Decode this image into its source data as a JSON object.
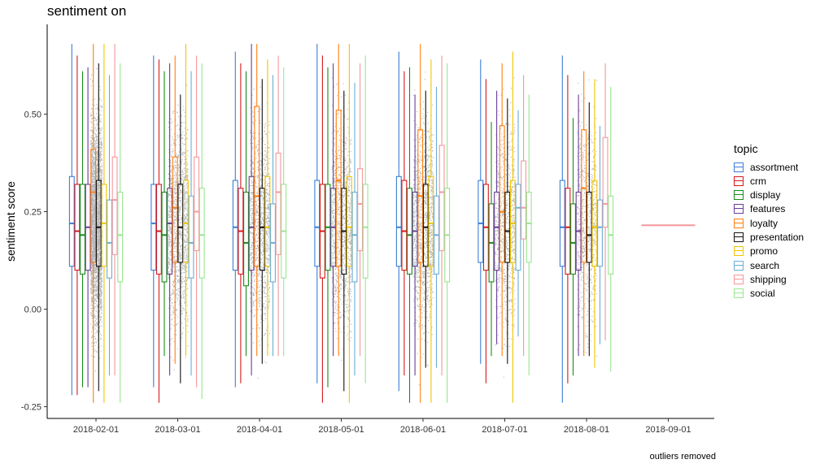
{
  "chart_data": {
    "type": "box",
    "title": "sentiment on",
    "caption": "outliers removed",
    "xlabel": "",
    "ylabel": "sentiment score",
    "ylim": [
      -0.28,
      0.73
    ],
    "y_ticks": [
      "-0.25",
      "0.00",
      "0.25",
      "0.50"
    ],
    "categories": [
      "2018-02-01",
      "2018-03-01",
      "2018-04-01",
      "2018-05-01",
      "2018-06-01",
      "2018-07-01",
      "2018-08-01",
      "2018-09-01"
    ],
    "legend": {
      "title": "topic",
      "position": "right"
    },
    "series": [
      {
        "name": "assortment",
        "color": "#3a7fd5",
        "boxes": [
          {
            "x": "2018-02-01",
            "min": -0.22,
            "q1": 0.11,
            "median": 0.22,
            "q3": 0.34,
            "max": 0.68
          },
          {
            "x": "2018-03-01",
            "min": -0.2,
            "q1": 0.1,
            "median": 0.22,
            "q3": 0.32,
            "max": 0.65
          },
          {
            "x": "2018-04-01",
            "min": -0.2,
            "q1": 0.1,
            "median": 0.21,
            "q3": 0.33,
            "max": 0.66
          },
          {
            "x": "2018-05-01",
            "min": -0.19,
            "q1": 0.11,
            "median": 0.21,
            "q3": 0.33,
            "max": 0.68
          },
          {
            "x": "2018-06-01",
            "min": -0.21,
            "q1": 0.11,
            "median": 0.21,
            "q3": 0.34,
            "max": 0.66
          },
          {
            "x": "2018-07-01",
            "min": -0.14,
            "q1": 0.12,
            "median": 0.22,
            "q3": 0.33,
            "max": 0.64
          },
          {
            "x": "2018-08-01",
            "min": -0.24,
            "q1": 0.11,
            "median": 0.21,
            "q3": 0.33,
            "max": 0.65
          }
        ]
      },
      {
        "name": "crm",
        "color": "#d7191c",
        "boxes": [
          {
            "x": "2018-02-01",
            "min": -0.22,
            "q1": 0.1,
            "median": 0.2,
            "q3": 0.32,
            "max": 0.65
          },
          {
            "x": "2018-03-01",
            "min": -0.24,
            "q1": 0.09,
            "median": 0.2,
            "q3": 0.32,
            "max": 0.64
          },
          {
            "x": "2018-04-01",
            "min": -0.19,
            "q1": 0.09,
            "median": 0.2,
            "q3": 0.31,
            "max": 0.63
          },
          {
            "x": "2018-05-01",
            "min": -0.24,
            "q1": 0.08,
            "median": 0.2,
            "q3": 0.32,
            "max": 0.65
          },
          {
            "x": "2018-06-01",
            "min": -0.17,
            "q1": 0.1,
            "median": 0.2,
            "q3": 0.33,
            "max": 0.61
          },
          {
            "x": "2018-07-01",
            "min": -0.19,
            "q1": 0.1,
            "median": 0.21,
            "q3": 0.32,
            "max": 0.59
          },
          {
            "x": "2018-08-01",
            "min": -0.19,
            "q1": 0.09,
            "median": 0.21,
            "q3": 0.31,
            "max": 0.6
          }
        ]
      },
      {
        "name": "display",
        "color": "#1a8b1a",
        "boxes": [
          {
            "x": "2018-02-01",
            "min": -0.2,
            "q1": 0.09,
            "median": 0.19,
            "q3": 0.32,
            "max": 0.61
          },
          {
            "x": "2018-03-01",
            "min": -0.12,
            "q1": 0.07,
            "median": 0.19,
            "q3": 0.3,
            "max": 0.61
          },
          {
            "x": "2018-04-01",
            "min": -0.12,
            "q1": 0.06,
            "median": 0.17,
            "q3": 0.3,
            "max": 0.61
          },
          {
            "x": "2018-05-01",
            "min": -0.2,
            "q1": 0.1,
            "median": 0.21,
            "q3": 0.32,
            "max": 0.62
          },
          {
            "x": "2018-06-01",
            "min": -0.24,
            "q1": 0.09,
            "median": 0.19,
            "q3": 0.31,
            "max": 0.62
          },
          {
            "x": "2018-07-01",
            "min": -0.12,
            "q1": 0.07,
            "median": 0.17,
            "q3": 0.27,
            "max": 0.48
          },
          {
            "x": "2018-08-01",
            "min": -0.17,
            "q1": 0.09,
            "median": 0.17,
            "q3": 0.27,
            "max": 0.49
          }
        ]
      },
      {
        "name": "features",
        "color": "#6a3d9a",
        "boxes": [
          {
            "x": "2018-02-01",
            "min": -0.2,
            "q1": 0.1,
            "median": 0.21,
            "q3": 0.32,
            "max": 0.62
          },
          {
            "x": "2018-03-01",
            "min": -0.17,
            "q1": 0.09,
            "median": 0.22,
            "q3": 0.31,
            "max": 0.63
          },
          {
            "x": "2018-04-01",
            "min": -0.17,
            "q1": 0.1,
            "median": 0.21,
            "q3": 0.34,
            "max": 0.68
          },
          {
            "x": "2018-05-01",
            "min": -0.12,
            "q1": 0.11,
            "median": 0.21,
            "q3": 0.31,
            "max": 0.63
          },
          {
            "x": "2018-06-01",
            "min": -0.17,
            "q1": 0.11,
            "median": 0.2,
            "q3": 0.3,
            "max": 0.55
          },
          {
            "x": "2018-07-01",
            "min": -0.09,
            "q1": 0.1,
            "median": 0.21,
            "q3": 0.3,
            "max": 0.56
          },
          {
            "x": "2018-08-01",
            "min": -0.12,
            "q1": 0.1,
            "median": 0.2,
            "q3": 0.3,
            "max": 0.55
          }
        ]
      },
      {
        "name": "loyalty",
        "color": "#ff7f0e",
        "boxes": [
          {
            "x": "2018-02-01",
            "min": -0.24,
            "q1": 0.12,
            "median": 0.3,
            "q3": 0.41,
            "max": 0.68
          },
          {
            "x": "2018-03-01",
            "min": -0.14,
            "q1": 0.12,
            "median": 0.26,
            "q3": 0.39,
            "max": 0.65
          },
          {
            "x": "2018-04-01",
            "min": -0.12,
            "q1": 0.11,
            "median": 0.29,
            "q3": 0.52,
            "max": 0.68
          },
          {
            "x": "2018-05-01",
            "min": -0.12,
            "q1": 0.11,
            "median": 0.33,
            "q3": 0.51,
            "max": 0.68
          },
          {
            "x": "2018-06-01",
            "min": -0.24,
            "q1": 0.12,
            "median": 0.29,
            "q3": 0.46,
            "max": 0.68
          },
          {
            "x": "2018-07-01",
            "min": -0.12,
            "q1": 0.12,
            "median": 0.25,
            "q3": 0.47,
            "max": 0.63
          },
          {
            "x": "2018-08-01",
            "min": -0.12,
            "q1": 0.12,
            "median": 0.31,
            "q3": 0.46,
            "max": 0.61
          }
        ]
      },
      {
        "name": "presentation",
        "color": "#111111",
        "boxes": [
          {
            "x": "2018-02-01",
            "min": -0.21,
            "q1": 0.11,
            "median": 0.21,
            "q3": 0.33,
            "max": 0.63
          },
          {
            "x": "2018-03-01",
            "min": -0.19,
            "q1": 0.12,
            "median": 0.21,
            "q3": 0.32,
            "max": 0.55
          },
          {
            "x": "2018-04-01",
            "min": -0.14,
            "q1": 0.1,
            "median": 0.21,
            "q3": 0.31,
            "max": 0.59
          },
          {
            "x": "2018-05-01",
            "min": -0.21,
            "q1": 0.09,
            "median": 0.2,
            "q3": 0.31,
            "max": 0.56
          },
          {
            "x": "2018-06-01",
            "min": -0.15,
            "q1": 0.11,
            "median": 0.21,
            "q3": 0.32,
            "max": 0.56
          },
          {
            "x": "2018-07-01",
            "min": -0.14,
            "q1": 0.12,
            "median": 0.2,
            "q3": 0.3,
            "max": 0.54
          },
          {
            "x": "2018-08-01",
            "min": -0.12,
            "q1": 0.12,
            "median": 0.19,
            "q3": 0.3,
            "max": 0.53
          }
        ]
      },
      {
        "name": "promo",
        "color": "#f2c500",
        "boxes": [
          {
            "x": "2018-02-01",
            "min": -0.24,
            "q1": 0.11,
            "median": 0.22,
            "q3": 0.32,
            "max": 0.68
          },
          {
            "x": "2018-03-01",
            "min": -0.12,
            "q1": 0.12,
            "median": 0.22,
            "q3": 0.33,
            "max": 0.68
          },
          {
            "x": "2018-04-01",
            "min": -0.12,
            "q1": 0.11,
            "median": 0.21,
            "q3": 0.34,
            "max": 0.64
          },
          {
            "x": "2018-05-01",
            "min": -0.24,
            "q1": 0.11,
            "median": 0.21,
            "q3": 0.34,
            "max": 0.68
          },
          {
            "x": "2018-06-01",
            "min": -0.24,
            "q1": 0.11,
            "median": 0.22,
            "q3": 0.34,
            "max": 0.64
          },
          {
            "x": "2018-07-01",
            "min": -0.24,
            "q1": 0.12,
            "median": 0.22,
            "q3": 0.33,
            "max": 0.66
          },
          {
            "x": "2018-08-01",
            "min": -0.15,
            "q1": 0.11,
            "median": 0.21,
            "q3": 0.33,
            "max": 0.59
          }
        ]
      },
      {
        "name": "search",
        "color": "#6baed6",
        "boxes": [
          {
            "x": "2018-02-01",
            "min": -0.17,
            "q1": 0.08,
            "median": 0.17,
            "q3": 0.28,
            "max": 0.6
          },
          {
            "x": "2018-03-01",
            "min": -0.17,
            "q1": 0.08,
            "median": 0.17,
            "q3": 0.29,
            "max": 0.61
          },
          {
            "x": "2018-04-01",
            "min": -0.12,
            "q1": 0.07,
            "median": 0.17,
            "q3": 0.27,
            "max": 0.6
          },
          {
            "x": "2018-05-01",
            "min": -0.17,
            "q1": 0.07,
            "median": 0.19,
            "q3": 0.3,
            "max": 0.58
          },
          {
            "x": "2018-06-01",
            "min": -0.15,
            "q1": 0.09,
            "median": 0.19,
            "q3": 0.29,
            "max": 0.57
          },
          {
            "x": "2018-07-01",
            "min": -0.07,
            "q1": 0.1,
            "median": 0.26,
            "q3": 0.32,
            "max": 0.51
          },
          {
            "x": "2018-08-01",
            "min": -0.09,
            "q1": 0.11,
            "median": 0.21,
            "q3": 0.28,
            "max": 0.47
          }
        ]
      },
      {
        "name": "shipping",
        "color": "#f4989c",
        "boxes": [
          {
            "x": "2018-02-01",
            "min": -0.17,
            "q1": 0.14,
            "median": 0.28,
            "q3": 0.39,
            "max": 0.68
          },
          {
            "x": "2018-03-01",
            "min": -0.2,
            "q1": 0.15,
            "median": 0.25,
            "q3": 0.39,
            "max": 0.65
          },
          {
            "x": "2018-04-01",
            "min": -0.12,
            "q1": 0.14,
            "median": 0.3,
            "q3": 0.4,
            "max": 0.65
          },
          {
            "x": "2018-05-01",
            "min": -0.12,
            "q1": 0.15,
            "median": 0.27,
            "q3": 0.36,
            "max": 0.63
          },
          {
            "x": "2018-06-01",
            "min": -0.17,
            "q1": 0.15,
            "median": 0.3,
            "q3": 0.42,
            "max": 0.65
          },
          {
            "x": "2018-07-01",
            "min": -0.12,
            "q1": 0.18,
            "median": 0.26,
            "q3": 0.38,
            "max": 0.6
          },
          {
            "x": "2018-08-01",
            "min": -0.08,
            "q1": 0.21,
            "median": 0.27,
            "q3": 0.44,
            "max": 0.63
          },
          {
            "x": "2018-09-01",
            "min": 0.215,
            "q1": 0.215,
            "median": 0.215,
            "q3": 0.215,
            "max": 0.215
          }
        ]
      },
      {
        "name": "social",
        "color": "#98e690",
        "boxes": [
          {
            "x": "2018-02-01",
            "min": -0.24,
            "q1": 0.07,
            "median": 0.19,
            "q3": 0.3,
            "max": 0.63
          },
          {
            "x": "2018-03-01",
            "min": -0.23,
            "q1": 0.08,
            "median": 0.19,
            "q3": 0.31,
            "max": 0.63
          },
          {
            "x": "2018-04-01",
            "min": -0.12,
            "q1": 0.08,
            "median": 0.2,
            "q3": 0.32,
            "max": 0.62
          },
          {
            "x": "2018-05-01",
            "min": -0.19,
            "q1": 0.08,
            "median": 0.21,
            "q3": 0.32,
            "max": 0.65
          },
          {
            "x": "2018-06-01",
            "min": -0.24,
            "q1": 0.07,
            "median": 0.19,
            "q3": 0.31,
            "max": 0.63
          },
          {
            "x": "2018-07-01",
            "min": -0.17,
            "q1": 0.12,
            "median": 0.22,
            "q3": 0.3,
            "max": 0.55
          },
          {
            "x": "2018-08-01",
            "min": -0.16,
            "q1": 0.09,
            "median": 0.19,
            "q3": 0.29,
            "max": 0.57
          }
        ]
      }
    ],
    "jitter_color": "#a6a6a6",
    "grid": false
  }
}
